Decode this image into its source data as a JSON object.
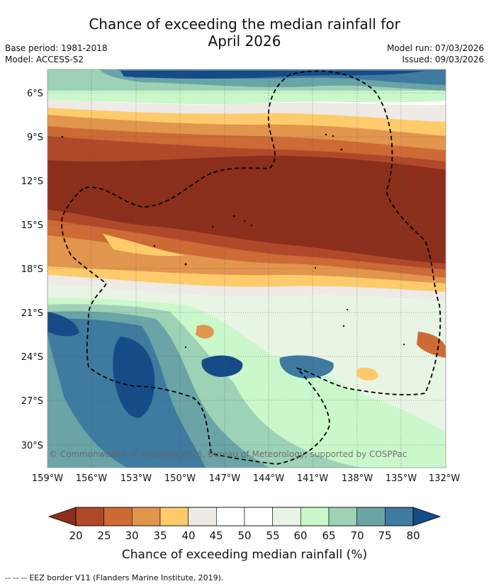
{
  "title": {
    "line1": "Chance of exceeding the median rainfall for",
    "line2": "April 2026"
  },
  "meta": {
    "base_period": "Base period: 1981-2018",
    "model": "Model: ACCESS-S2",
    "model_run": "Model run: 07/03/2026",
    "issued": "Issued: 09/03/2026"
  },
  "map": {
    "lat_labels": [
      "6°S",
      "9°S",
      "12°S",
      "15°S",
      "18°S",
      "21°S",
      "24°S",
      "27°S",
      "30°S"
    ],
    "lon_labels": [
      "159°W",
      "156°W",
      "153°W",
      "150°W",
      "147°W",
      "144°W",
      "141°W",
      "138°W",
      "135°W",
      "132°W"
    ],
    "attribution": "© Commonwealth of Australia 2026, Bureau of Meteorology, supported by COSPPac",
    "colors": {
      "c15": "#8b2f1c",
      "c20": "#b0492a",
      "c25": "#cd6a35",
      "c30": "#e2954d",
      "c35": "#fdcb6b",
      "c40": "#eeeae6",
      "c45": "#ffffff",
      "c55": "#e8f5e4",
      "c60": "#caf8cb",
      "c65": "#9dd2b7",
      "c70": "#6aa4a7",
      "c75": "#3f7aa0",
      "c80": "#154c88"
    }
  },
  "colorbar": {
    "ticks": [
      "20",
      "25",
      "30",
      "35",
      "40",
      "45",
      "50",
      "55",
      "60",
      "65",
      "70",
      "75",
      "80"
    ],
    "label": "Chance of exceeding median rainfall (%)"
  },
  "legend": {
    "eez_marker": "-- -- --",
    "eez_text": "EEZ border V11 (Flanders Marine Institute, 2019)."
  }
}
